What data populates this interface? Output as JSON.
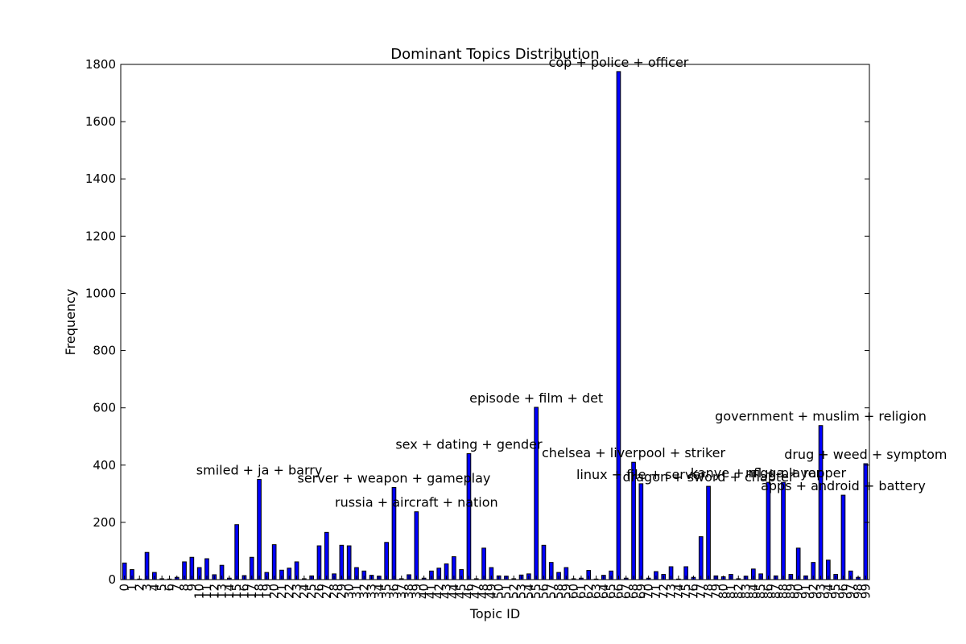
{
  "chart_data": {
    "type": "bar",
    "title": "Dominant Topics Distribution",
    "xlabel": "Topic ID",
    "ylabel": "Frequency",
    "ylim": [
      0,
      1800
    ],
    "yticks": [
      0,
      200,
      400,
      600,
      800,
      1000,
      1200,
      1400,
      1600,
      1800
    ],
    "grid": false,
    "legend": false,
    "bar_color": "#0000ff",
    "edge_color": "#000000",
    "categories": [
      "0",
      "1",
      "2",
      "3",
      "4",
      "5",
      "6",
      "7",
      "8",
      "9",
      "10",
      "11",
      "12",
      "13",
      "14",
      "15",
      "16",
      "17",
      "18",
      "19",
      "20",
      "21",
      "22",
      "23",
      "24",
      "25",
      "26",
      "27",
      "28",
      "29",
      "30",
      "31",
      "32",
      "33",
      "34",
      "35",
      "36",
      "37",
      "38",
      "39",
      "40",
      "41",
      "42",
      "43",
      "44",
      "45",
      "46",
      "47",
      "48",
      "49",
      "50",
      "51",
      "52",
      "53",
      "54",
      "55",
      "56",
      "57",
      "58",
      "59",
      "60",
      "61",
      "62",
      "63",
      "64",
      "65",
      "66",
      "67",
      "68",
      "69",
      "70",
      "71",
      "72",
      "73",
      "74",
      "75",
      "76",
      "77",
      "78",
      "79",
      "80",
      "81",
      "82",
      "83",
      "84",
      "85",
      "86",
      "87",
      "88",
      "89",
      "90",
      "91",
      "92",
      "93",
      "94",
      "95",
      "96",
      "97",
      "98",
      "99"
    ],
    "values": [
      58,
      35,
      2,
      95,
      25,
      3,
      2,
      8,
      62,
      78,
      42,
      73,
      17,
      50,
      5,
      192,
      14,
      78,
      350,
      25,
      122,
      33,
      40,
      62,
      3,
      13,
      118,
      165,
      20,
      120,
      118,
      42,
      30,
      15,
      12,
      130,
      322,
      3,
      17,
      237,
      5,
      30,
      40,
      55,
      80,
      35,
      440,
      3,
      110,
      42,
      13,
      12,
      3,
      16,
      20,
      602,
      120,
      60,
      25,
      42,
      3,
      5,
      32,
      2,
      15,
      30,
      1775,
      5,
      410,
      335,
      5,
      28,
      18,
      45,
      2,
      45,
      8,
      150,
      326,
      13,
      10,
      18,
      3,
      12,
      37,
      20,
      340,
      13,
      340,
      18,
      110,
      13,
      60,
      538,
      68,
      18,
      295,
      30,
      8,
      405
    ],
    "annotations": [
      {
        "topic": 18,
        "text": "smiled + ja + barry"
      },
      {
        "topic": 36,
        "text": "server + weapon + gameplay"
      },
      {
        "topic": 39,
        "text": "russia + aircraft + nation"
      },
      {
        "topic": 46,
        "text": "sex + dating + gender"
      },
      {
        "topic": 55,
        "text": "episode + film + det"
      },
      {
        "topic": 66,
        "text": "cop + police + officer"
      },
      {
        "topic": 68,
        "text": "chelsea + liverpool + striker"
      },
      {
        "topic": 69,
        "text": "linux + file + server"
      },
      {
        "topic": 78,
        "text": "dragon + sword + chapter"
      },
      {
        "topic": 86,
        "text": "kanye + nigga + rapper"
      },
      {
        "topic": 88,
        "text": "nfl + player"
      },
      {
        "topic": 93,
        "text": "government + muslim + religion"
      },
      {
        "topic": 96,
        "text": "apps + android + battery"
      },
      {
        "topic": 99,
        "text": "drug + weed + symptom"
      }
    ]
  }
}
